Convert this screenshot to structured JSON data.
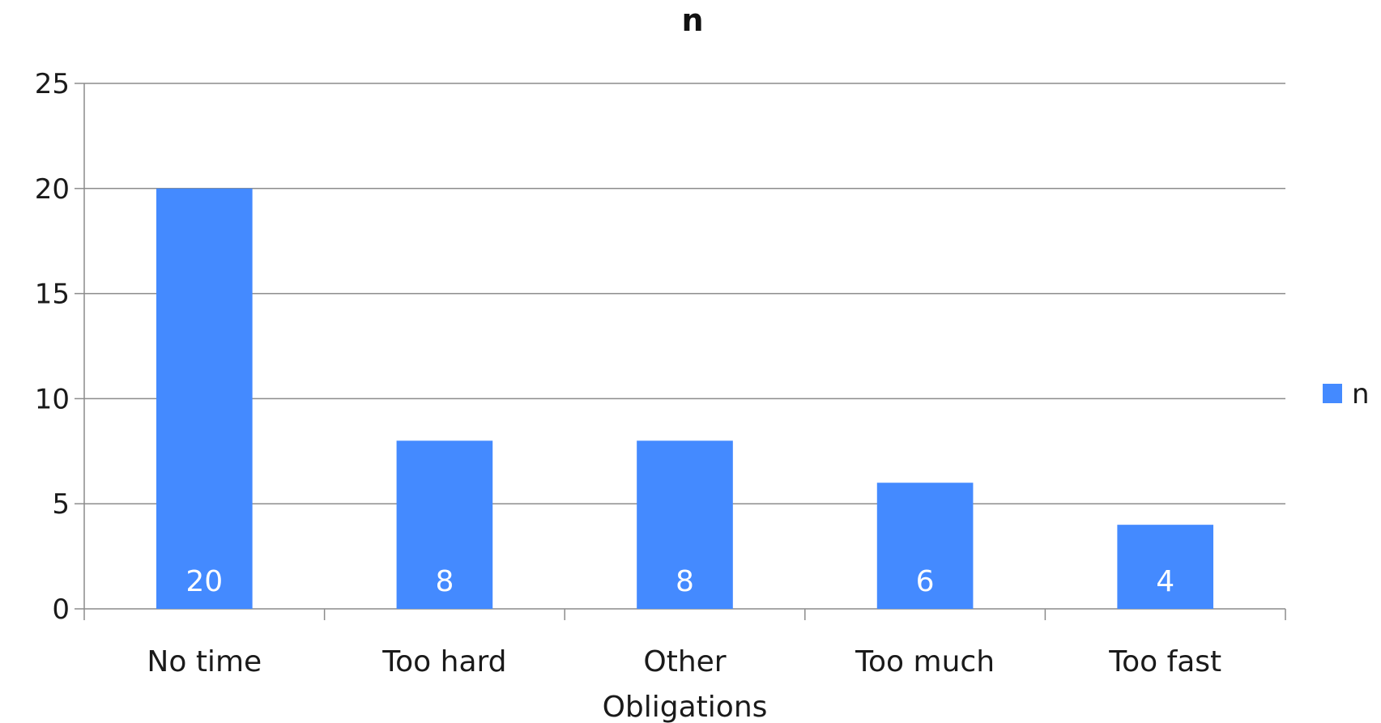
{
  "chart_data": {
    "type": "bar",
    "title": "n",
    "categories": [
      "No time",
      "Too hard",
      "Other\nObligations",
      "Too much",
      "Too fast"
    ],
    "series": [
      {
        "name": "n",
        "values": [
          20,
          8,
          8,
          6,
          4
        ]
      }
    ],
    "ylim": [
      0,
      25
    ],
    "yticks": [
      0,
      5,
      10,
      15,
      20,
      25
    ],
    "grid": true,
    "legend_position": "right",
    "bar_color": "#448aff",
    "data_labels": true
  }
}
